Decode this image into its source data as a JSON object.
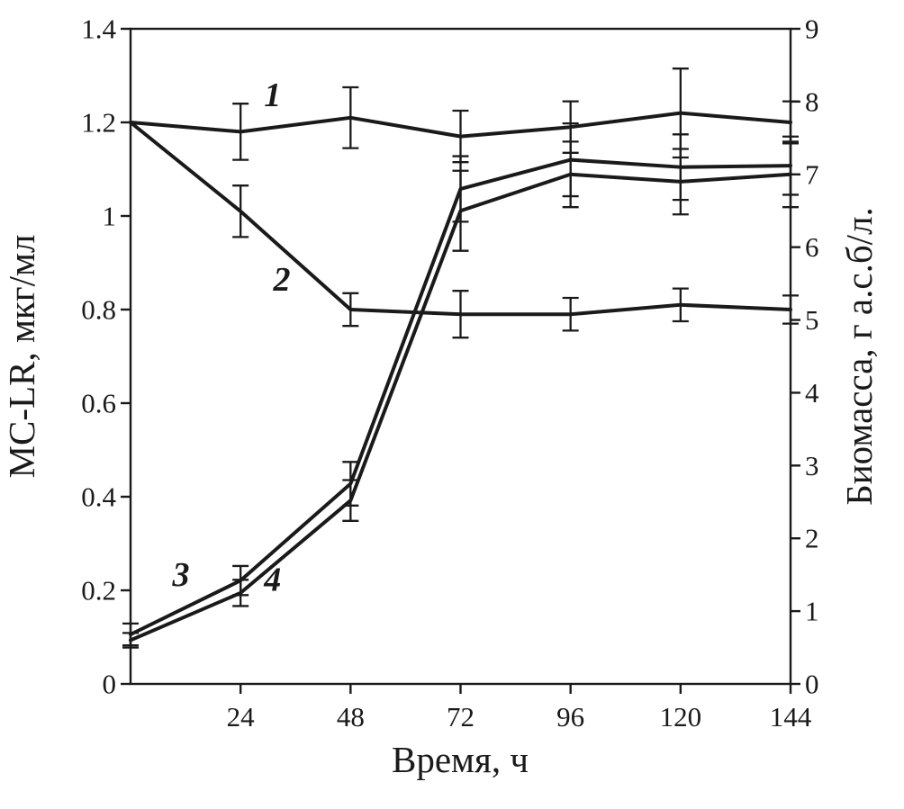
{
  "figure": {
    "background": "#ffffff"
  },
  "chart_data": {
    "type": "line",
    "title": "",
    "xlabel": "Время, ч",
    "ylabel_left": "МС-LR, мкг/мл",
    "ylabel_right": "Биомасса, г а.с.б/л.",
    "xlim": [
      0,
      144
    ],
    "x_ticks": [
      24,
      48,
      72,
      96,
      120,
      144
    ],
    "ylim_left": [
      0,
      1.4
    ],
    "y_ticks_left": [
      "0",
      "0.2",
      "0.4",
      "0.6",
      "0.8",
      "1",
      "1.2",
      "1.4"
    ],
    "ylim_right": [
      0,
      9
    ],
    "y_ticks_right": [
      "0",
      "1",
      "2",
      "3",
      "4",
      "5",
      "6",
      "7",
      "8",
      "9"
    ],
    "grid": false,
    "legend_position": "none",
    "line_color": "#1a1a1a",
    "x": [
      0,
      24,
      48,
      72,
      96,
      120,
      144
    ],
    "series": [
      {
        "name": "1",
        "axis": "left",
        "values": [
          1.2,
          1.18,
          1.21,
          1.17,
          1.19,
          1.22,
          1.2
        ],
        "errors": [
          0,
          0.06,
          0.065,
          0.055,
          0.055,
          0.095,
          0.045
        ],
        "label": {
          "x": 31,
          "y": 1.235
        }
      },
      {
        "name": "2",
        "axis": "left",
        "values": [
          1.2,
          1.01,
          0.8,
          0.79,
          0.79,
          0.81,
          0.8
        ],
        "errors": [
          0,
          0.055,
          0.035,
          0.05,
          0.035,
          0.035,
          0.03
        ],
        "label": {
          "x": 33,
          "y": 0.84
        }
      },
      {
        "name": "3",
        "axis": "right",
        "values": [
          0.68,
          1.42,
          2.75,
          6.8,
          7.2,
          7.1,
          7.12
        ],
        "errors": [
          0.15,
          0.2,
          0.3,
          0.45,
          0.5,
          0.45,
          0.4
        ],
        "label": {
          "x": 11,
          "y": 1.35
        }
      },
      {
        "name": "4",
        "axis": "right",
        "values": [
          0.6,
          1.25,
          2.52,
          6.5,
          7.0,
          6.9,
          7.0
        ],
        "errors": [
          0.1,
          0.18,
          0.28,
          0.55,
          0.45,
          0.45,
          0.45
        ],
        "label": {
          "x": 31,
          "y": 1.28
        }
      }
    ]
  }
}
